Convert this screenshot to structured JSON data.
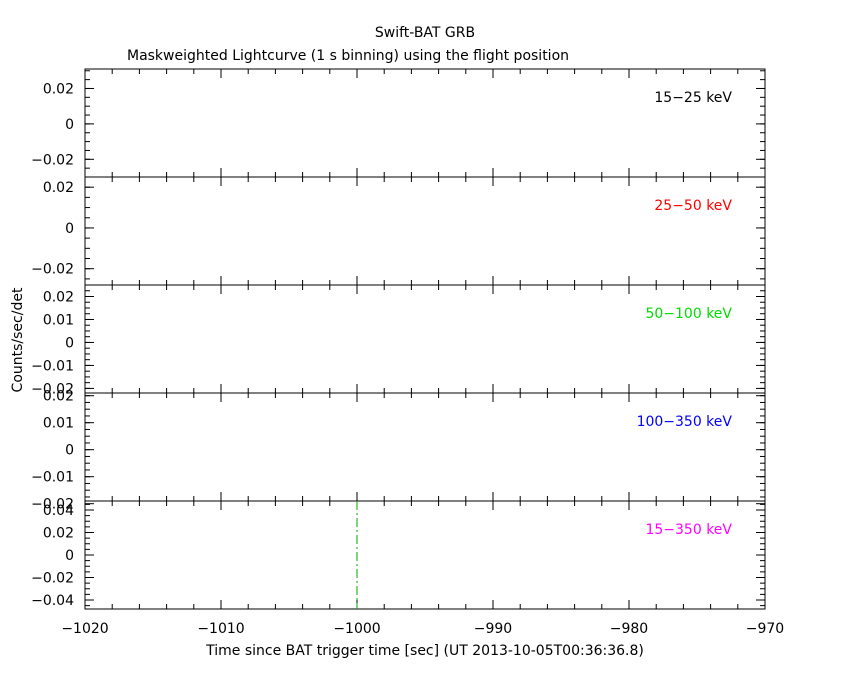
{
  "chart_data": {
    "type": "line",
    "title": "Swift-BAT GRB",
    "subtitle": "Maskweighted Lightcurve (1 s binning) using the flight position",
    "xlabel": "Time since BAT trigger time [sec] (UT 2013-10-05T00:36:36.8)",
    "ylabel": "Counts/sec/det",
    "xlim": [
      -1020,
      -970
    ],
    "x_ticks": [
      "−1020",
      "−1010",
      "−1000",
      "−990",
      "−980",
      "−970"
    ],
    "trigger_marker_x": -1000,
    "panels": [
      {
        "name": "15−25 keV",
        "color": "#000000",
        "ylim": [
          -0.03,
          0.031
        ],
        "y_ticks": [
          {
            "v": 0.02,
            "label": "0.02"
          },
          {
            "v": 0,
            "label": "0"
          },
          {
            "v": -0.02,
            "label": "−0.02"
          }
        ]
      },
      {
        "name": "25−50 keV",
        "color": "#ff0000",
        "ylim": [
          -0.028,
          0.025
        ],
        "y_ticks": [
          {
            "v": 0.02,
            "label": "0.02"
          },
          {
            "v": 0,
            "label": "0"
          },
          {
            "v": -0.02,
            "label": "−0.02"
          }
        ]
      },
      {
        "name": "50−100 keV",
        "color": "#00dd00",
        "ylim": [
          -0.022,
          0.025
        ],
        "y_ticks": [
          {
            "v": 0.02,
            "label": "0.02"
          },
          {
            "v": 0.01,
            "label": "0.01"
          },
          {
            "v": 0,
            "label": "0"
          },
          {
            "v": -0.01,
            "label": "−0.01"
          },
          {
            "v": -0.02,
            "label": "−0.02"
          }
        ]
      },
      {
        "name": "100−350 keV",
        "color": "#0000ff",
        "ylim": [
          -0.019,
          0.021
        ],
        "y_ticks": [
          {
            "v": 0.02,
            "label": "0.02"
          },
          {
            "v": 0.01,
            "label": "0.01"
          },
          {
            "v": 0,
            "label": "0"
          },
          {
            "v": -0.01,
            "label": "−0.01"
          },
          {
            "v": -0.02,
            "label": "−0.02"
          }
        ]
      },
      {
        "name": "15−350 keV",
        "color": "#ff00ff",
        "ylim": [
          -0.048,
          0.048
        ],
        "y_ticks": [
          {
            "v": 0.04,
            "label": "0.04"
          },
          {
            "v": 0.02,
            "label": "0.02"
          },
          {
            "v": 0,
            "label": "0"
          },
          {
            "v": -0.02,
            "label": "−0.02"
          },
          {
            "v": -0.04,
            "label": "−0.04"
          }
        ]
      }
    ],
    "marker_color": "#00aa00",
    "grid": false
  }
}
